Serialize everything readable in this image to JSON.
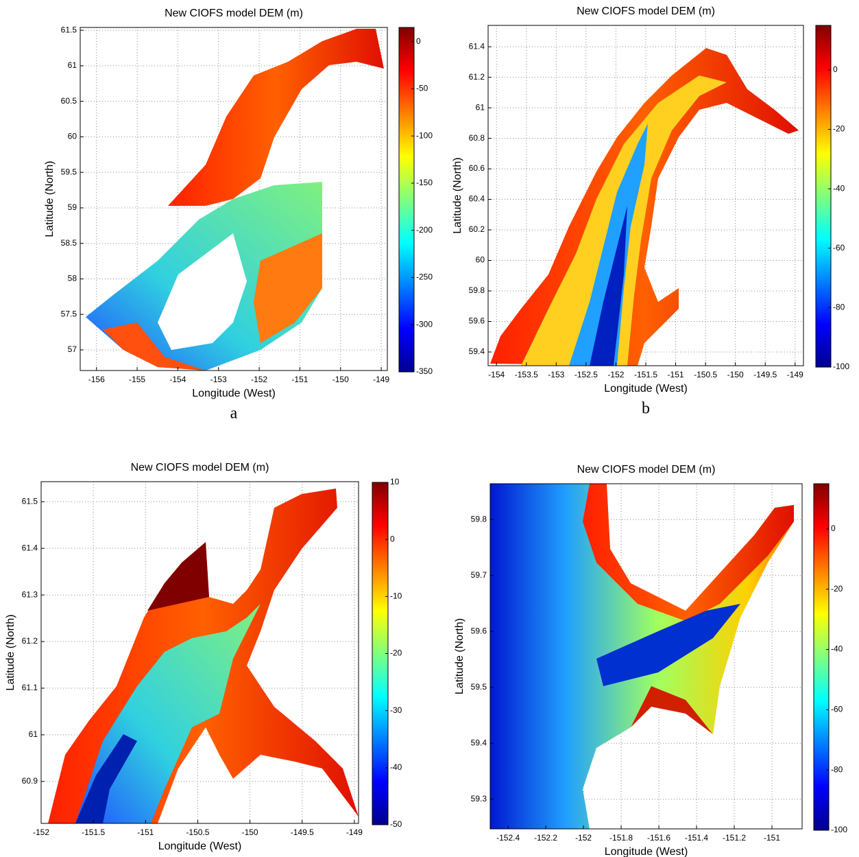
{
  "chart_data": [
    {
      "type": "heatmap",
      "title": "New CIOFS model DEM (m)",
      "xlabel": "Longitude (West)",
      "ylabel": "Latitude (North)",
      "caption": "a",
      "xlim": [
        -156.4,
        -148.85
      ],
      "ylim": [
        56.71,
        61.54
      ],
      "xticks": [
        -156,
        -155,
        -154,
        -153,
        -152,
        -151,
        -150,
        -149
      ],
      "yticks": [
        57,
        57.5,
        58,
        58.5,
        59,
        59.5,
        60,
        60.5,
        61,
        61.5
      ],
      "grid": true,
      "colormap": "jet",
      "colorbar_lim": [
        -350,
        15
      ],
      "colorbar_ticks": [
        0,
        -50,
        -100,
        -150,
        -200,
        -250,
        -300,
        -350
      ]
    },
    {
      "type": "heatmap",
      "title": "New CIOFS model DEM (m)",
      "xlabel": "Longitude (West)",
      "ylabel": "Latitude (North)",
      "caption": "b",
      "xlim": [
        -154.14,
        -148.86
      ],
      "ylim": [
        59.31,
        61.54
      ],
      "xticks": [
        -154,
        -153.5,
        -153,
        -152.5,
        -152,
        -151.5,
        -151,
        -150.5,
        -150,
        -149.5,
        -149
      ],
      "yticks": [
        59.4,
        59.6,
        59.8,
        60,
        60.2,
        60.4,
        60.6,
        60.8,
        61,
        61.2,
        61.4
      ],
      "grid": true,
      "colormap": "jet",
      "colorbar_lim": [
        -100,
        15
      ],
      "colorbar_ticks": [
        0,
        -20,
        -40,
        -60,
        -80,
        -100
      ]
    },
    {
      "type": "heatmap",
      "title": "New CIOFS model DEM (m)",
      "xlabel": "Longitude (West)",
      "ylabel": "Latitude (North)",
      "xlim": [
        -152,
        -148.96
      ],
      "ylim": [
        60.81,
        61.543
      ],
      "xticks": [
        -152,
        -151.5,
        -151,
        -150.5,
        -150,
        -149.5,
        -149
      ],
      "yticks": [
        60.9,
        61,
        61.1,
        61.2,
        61.3,
        61.4,
        61.5
      ],
      "grid": true,
      "colormap": "jet",
      "colorbar_lim": [
        -50,
        10
      ],
      "colorbar_ticks": [
        10,
        0,
        -10,
        -20,
        -30,
        -40,
        -50
      ]
    },
    {
      "type": "heatmap",
      "title": "New CIOFS model DEM (m)",
      "xlabel": "Longitude (West)",
      "ylabel": "Latitude (North)",
      "xlim": [
        -152.495,
        -150.84
      ],
      "ylim": [
        59.247,
        59.864
      ],
      "xticks": [
        -152.4,
        -152.2,
        -152,
        -151.8,
        -151.6,
        -151.4,
        -151.2,
        -151
      ],
      "yticks": [
        59.3,
        59.4,
        59.5,
        59.6,
        59.7,
        59.8
      ],
      "grid": true,
      "colormap": "jet",
      "colorbar_lim": [
        -100,
        15
      ],
      "colorbar_ticks": [
        0,
        -20,
        -40,
        -60,
        -80,
        -100
      ]
    }
  ]
}
